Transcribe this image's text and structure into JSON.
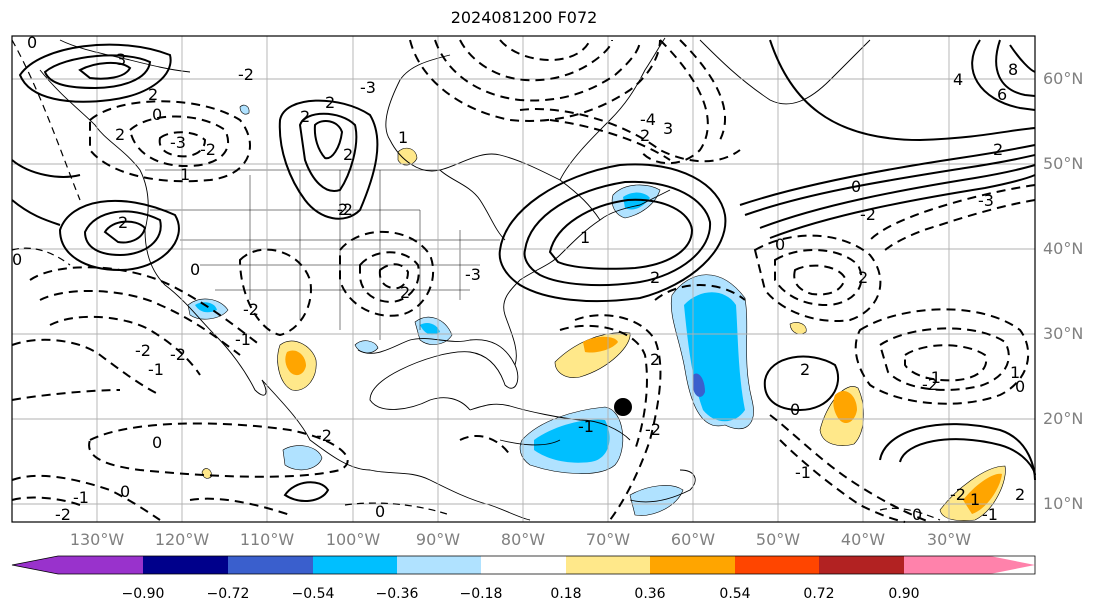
{
  "title": "2024081200 F072",
  "map": {
    "lon_labels": [
      "130°W",
      "120°W",
      "110°W",
      "100°W",
      "90°W",
      "80°W",
      "70°W",
      "60°W",
      "50°W",
      "40°W",
      "30°W"
    ],
    "lat_labels": [
      "60°N",
      "50°N",
      "40°N",
      "30°N",
      "20°N",
      "10°N"
    ],
    "contour_labels": [
      "3",
      "2",
      "0",
      "2",
      "2",
      "2",
      "2",
      "2",
      "0",
      "-3",
      "-2",
      "-2",
      "1",
      "2",
      "3",
      "2",
      "2",
      "0",
      "-3",
      "-2",
      "0",
      "2",
      "-2",
      "-1",
      "2",
      "-2",
      "2",
      "-2",
      "-1",
      "2",
      "-2",
      "1",
      "0",
      "0",
      "1",
      "-1",
      "-1",
      "0",
      "-2",
      "0",
      "-2",
      "0",
      "-2",
      "1",
      "4",
      "6",
      "8",
      "-3",
      "-4",
      "0",
      "-2",
      "0",
      "-1",
      "1",
      "2",
      "-3",
      "-2",
      "-1",
      "0",
      "-1",
      "2"
    ],
    "storm_marker": "current storm center"
  },
  "colorbar": {
    "tick_labels": [
      "−0.90",
      "−0.72",
      "−0.54",
      "−0.36",
      "−0.18",
      "0.18",
      "0.36",
      "0.54",
      "0.72",
      "0.90"
    ],
    "colors": [
      "#9932cc",
      "#00008b",
      "#3a5fcd",
      "#00bfff",
      "#b0e2ff",
      "#ffffff",
      "#ffe88a",
      "#ffa500",
      "#ff4500",
      "#b22222",
      "#ff82ab"
    ]
  }
}
